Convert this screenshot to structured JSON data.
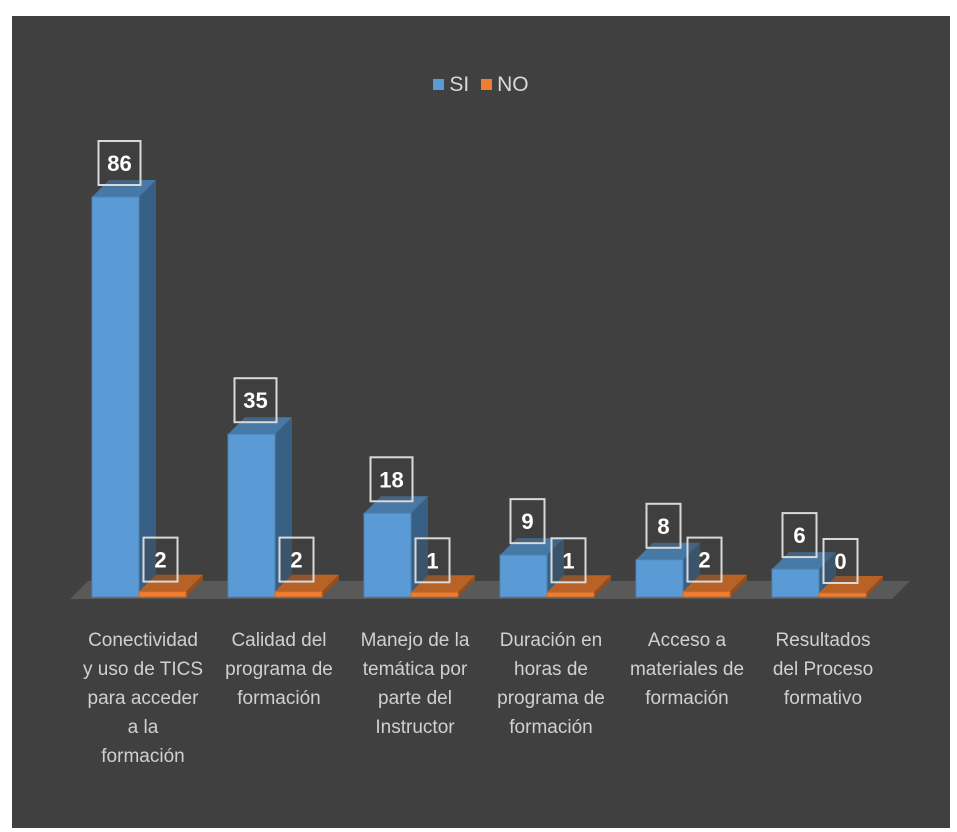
{
  "chart_data": {
    "type": "bar",
    "title": "",
    "xlabel": "",
    "ylabel": "",
    "ylim": [
      0,
      86
    ],
    "grid": false,
    "legend_position": "top-center",
    "categories": [
      "Conectividad y uso de TICS para acceder a la formación",
      "Calidad del programa de formación",
      "Manejo de la temática por parte del Instructor",
      "Duración en horas de programa de formación",
      "Acceso a materiales de formación",
      "Resultados del Proceso formativo"
    ],
    "series": [
      {
        "name": "SI",
        "values": [
          86,
          35,
          18,
          9,
          8,
          6
        ],
        "color": "#5b9bd5"
      },
      {
        "name": "NO",
        "values": [
          2,
          2,
          1,
          1,
          2,
          0
        ],
        "color": "#ed7d31"
      }
    ]
  },
  "colors": {
    "background": "#404040",
    "floor": "#595959",
    "label_box_border": "#d9d9d9",
    "text": "#d9d9d9"
  }
}
